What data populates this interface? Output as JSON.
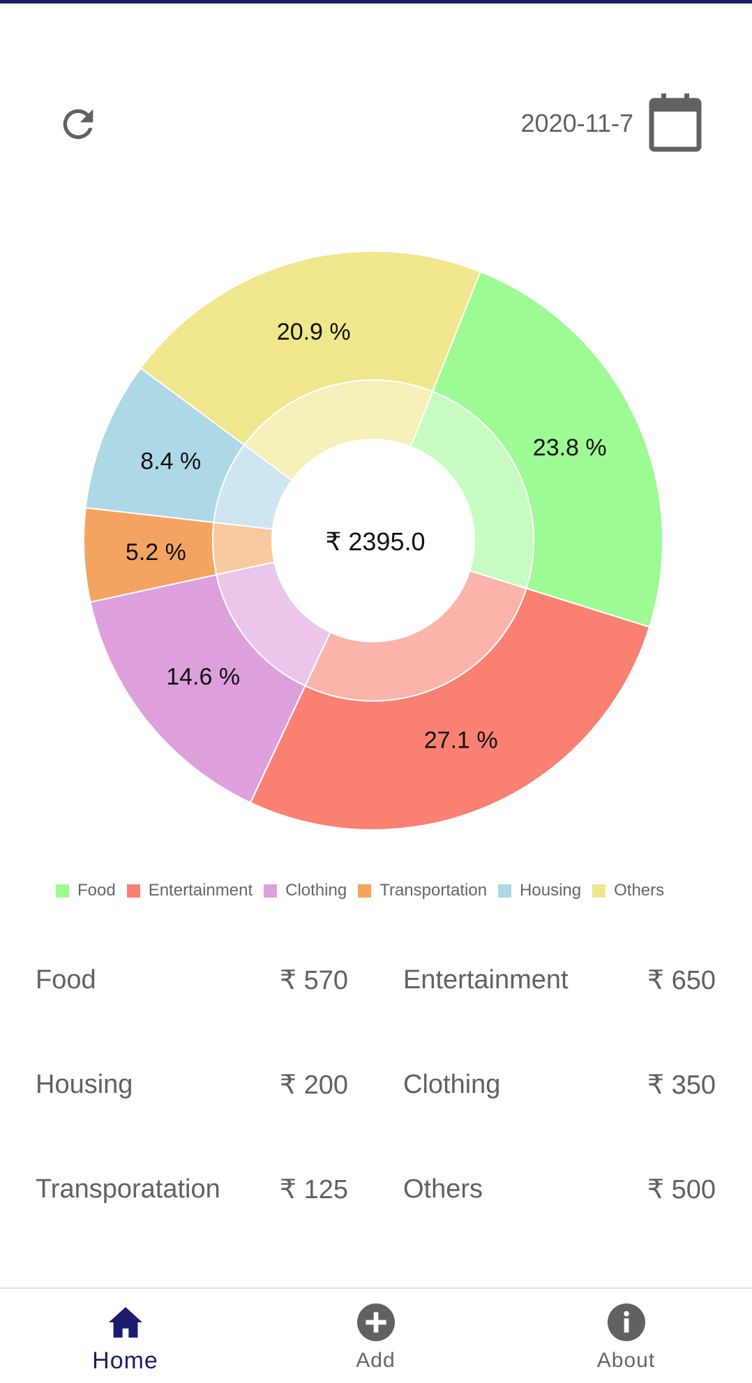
{
  "header": {
    "date": "2020-11-7"
  },
  "chart_data": {
    "type": "pie",
    "center_label": "₹ 2395.0",
    "slices": [
      {
        "name": "Food",
        "value": 570,
        "label": "23.8 %",
        "color": "#9dfb93",
        "inner_color": "#c6fcc0"
      },
      {
        "name": "Entertainment",
        "value": 650,
        "label": "27.1 %",
        "color": "#fa8072",
        "inner_color": "#fbb3aa"
      },
      {
        "name": "Clothing",
        "value": 350,
        "label": "14.6 %",
        "color": "#dda0dd",
        "inner_color": "#ebc6ea"
      },
      {
        "name": "Transportation",
        "value": 125,
        "label": "5.2 %",
        "color": "#f4a460",
        "inner_color": "#f8c99e"
      },
      {
        "name": "Housing",
        "value": 200,
        "label": "8.4 %",
        "color": "#add8e6",
        "inner_color": "#cde6f0"
      },
      {
        "name": "Others",
        "value": 500,
        "label": "20.9 %",
        "color": "#f0e68c",
        "inner_color": "#f6f0b9"
      }
    ],
    "legend": [
      "Food",
      "Entertainment",
      "Clothing",
      "Transportation",
      "Housing",
      "Others"
    ]
  },
  "summary": [
    [
      {
        "name": "Food",
        "amount": "₹ 570"
      },
      {
        "name": "Entertainment",
        "amount": "₹ 650"
      }
    ],
    [
      {
        "name": "Housing",
        "amount": "₹ 200"
      },
      {
        "name": "Clothing",
        "amount": "₹ 350"
      }
    ],
    [
      {
        "name": "Transporatation",
        "amount": "₹ 125"
      },
      {
        "name": "Others",
        "amount": "₹ 500"
      }
    ]
  ],
  "nav": {
    "home": "Home",
    "add": "Add",
    "about": "About"
  },
  "colors": {
    "accent": "#1c1c6e",
    "icon_gray": "#616161"
  }
}
